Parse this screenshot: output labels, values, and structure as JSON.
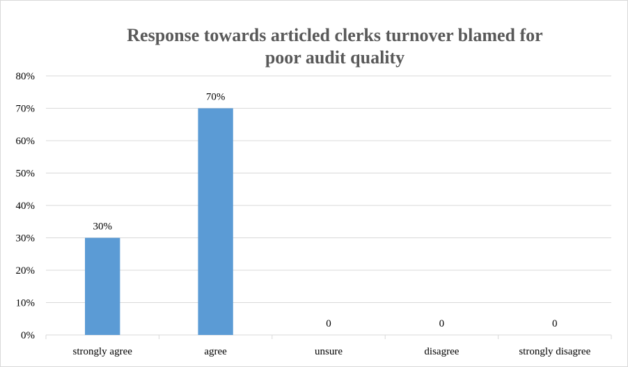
{
  "chart_data": {
    "type": "bar",
    "title_lines": [
      "Response  towards articled clerks turnover blamed for",
      "poor audit quality"
    ],
    "categories": [
      "strongly agree",
      "agree",
      "unsure",
      "disagree",
      "strongly disagree"
    ],
    "values": [
      0.3,
      0.7,
      0,
      0,
      0
    ],
    "data_labels": [
      "30%",
      "70%",
      "0",
      "0",
      "0"
    ],
    "y_ticks": [
      "0%",
      "10%",
      "20%",
      "30%",
      "40%",
      "50%",
      "60%",
      "70%",
      "80%"
    ],
    "ylim": [
      0,
      0.8
    ],
    "grid": true,
    "legend": "none",
    "bar_color": "#5b9bd5",
    "grid_color": "#d9d9d9"
  }
}
